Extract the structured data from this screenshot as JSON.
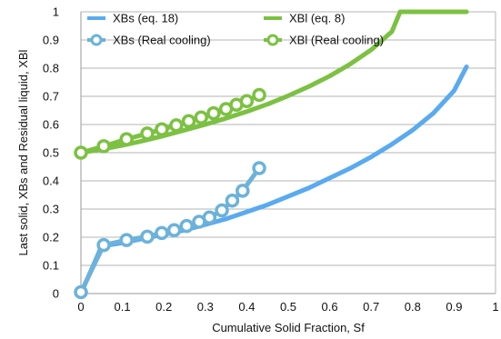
{
  "chart_data": {
    "type": "line",
    "title": "",
    "xlabel": "Cumulative Solid Fraction, Sf",
    "ylabel": "Last solid, XBs and Residual liquid, XBl",
    "xlim": [
      0,
      1
    ],
    "ylim": [
      0,
      1
    ],
    "x_ticks": [
      "0",
      "0.1",
      "0.2",
      "0.3",
      "0.4",
      "0.5",
      "0.6",
      "0.7",
      "0.8",
      "0.9",
      "1"
    ],
    "y_ticks": [
      "0",
      "0.1",
      "0.2",
      "0.3",
      "0.4",
      "0.5",
      "0.6",
      "0.7",
      "0.8",
      "0.9",
      "1"
    ],
    "grid": "horizontal",
    "legend_position": "top-left",
    "series": [
      {
        "name": "XBs (eq. 18)",
        "style": "line",
        "color": "#5aaaf0",
        "points": [
          [
            0,
            0
          ],
          [
            0.05,
            0.168
          ],
          [
            0.1,
            0.18
          ],
          [
            0.15,
            0.195
          ],
          [
            0.2,
            0.21
          ],
          [
            0.25,
            0.225
          ],
          [
            0.3,
            0.245
          ],
          [
            0.35,
            0.265
          ],
          [
            0.4,
            0.29
          ],
          [
            0.45,
            0.315
          ],
          [
            0.5,
            0.345
          ],
          [
            0.55,
            0.375
          ],
          [
            0.6,
            0.41
          ],
          [
            0.65,
            0.445
          ],
          [
            0.7,
            0.485
          ],
          [
            0.75,
            0.53
          ],
          [
            0.8,
            0.58
          ],
          [
            0.85,
            0.64
          ],
          [
            0.9,
            0.72
          ],
          [
            0.93,
            0.805
          ]
        ]
      },
      {
        "name": "XBl (eq. 8)",
        "style": "line",
        "color": "#7cc142",
        "points": [
          [
            0,
            0.5
          ],
          [
            0.05,
            0.512
          ],
          [
            0.1,
            0.526
          ],
          [
            0.15,
            0.542
          ],
          [
            0.2,
            0.56
          ],
          [
            0.25,
            0.58
          ],
          [
            0.3,
            0.6
          ],
          [
            0.35,
            0.622
          ],
          [
            0.4,
            0.646
          ],
          [
            0.45,
            0.672
          ],
          [
            0.5,
            0.702
          ],
          [
            0.55,
            0.735
          ],
          [
            0.6,
            0.772
          ],
          [
            0.65,
            0.815
          ],
          [
            0.7,
            0.865
          ],
          [
            0.75,
            0.93
          ],
          [
            0.77,
            1.0
          ],
          [
            0.93,
            1.0
          ]
        ]
      },
      {
        "name": "XBs (Real cooling)",
        "style": "markers-line",
        "color": "#6cb2da",
        "points": [
          [
            0,
            0.005
          ],
          [
            0.055,
            0.172
          ],
          [
            0.11,
            0.19
          ],
          [
            0.16,
            0.202
          ],
          [
            0.195,
            0.215
          ],
          [
            0.225,
            0.225
          ],
          [
            0.255,
            0.24
          ],
          [
            0.285,
            0.255
          ],
          [
            0.31,
            0.27
          ],
          [
            0.34,
            0.295
          ],
          [
            0.365,
            0.33
          ],
          [
            0.39,
            0.365
          ],
          [
            0.43,
            0.445
          ]
        ]
      },
      {
        "name": "XBl (Real cooling)",
        "style": "markers-line",
        "color": "#7cc142",
        "points": [
          [
            0,
            0.5
          ],
          [
            0.055,
            0.523
          ],
          [
            0.11,
            0.548
          ],
          [
            0.16,
            0.568
          ],
          [
            0.195,
            0.583
          ],
          [
            0.23,
            0.597
          ],
          [
            0.26,
            0.612
          ],
          [
            0.29,
            0.625
          ],
          [
            0.32,
            0.64
          ],
          [
            0.35,
            0.655
          ],
          [
            0.375,
            0.67
          ],
          [
            0.4,
            0.683
          ],
          [
            0.43,
            0.705
          ]
        ]
      }
    ]
  }
}
